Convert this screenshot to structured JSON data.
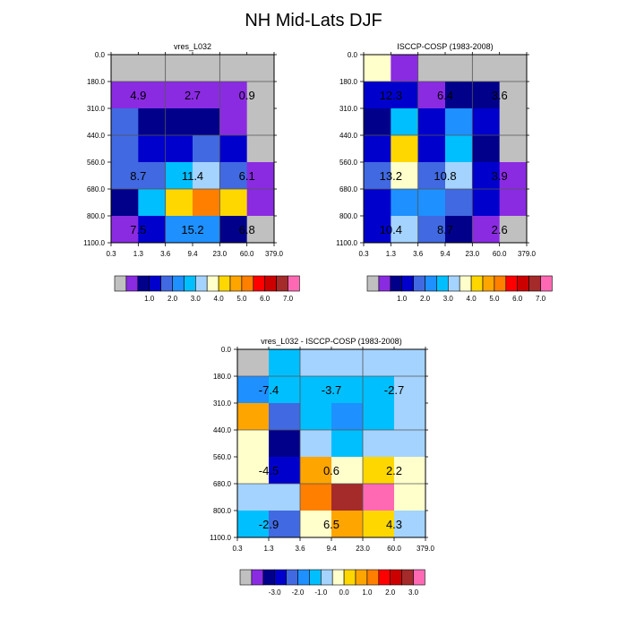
{
  "title": "NH Mid-Lats DJF",
  "colors": {
    "seq": [
      "#c0c0c0",
      "#8a2be2",
      "#00008b",
      "#0000cd",
      "#4169e1",
      "#1e90ff",
      "#00bfff",
      "#a4d3ff",
      "#ffffcc",
      "#ffd700",
      "#ffa500",
      "#ff7f00",
      "#ff0000",
      "#cd0000",
      "#a52a2a",
      "#ff69b4"
    ],
    "diff": [
      "#c0c0c0",
      "#8a2be2",
      "#00008b",
      "#0000cd",
      "#4169e1",
      "#1e90ff",
      "#00bfff",
      "#a4d3ff",
      "#ffffcc",
      "#ffd700",
      "#ffa500",
      "#ff7f00",
      "#ff0000",
      "#cd0000",
      "#a52a2a",
      "#ff69b4"
    ]
  },
  "chart_data": [
    {
      "type": "heatmap",
      "title": "vres_L032",
      "xticks": [
        "0.3",
        "1.3",
        "3.6",
        "9.4",
        "23.0",
        "60.0",
        "379.0"
      ],
      "yticks": [
        "0.0",
        "180.0",
        "310.0",
        "440.0",
        "560.0",
        "680.0",
        "800.0",
        "1100.0"
      ],
      "cells": [
        [
          0,
          0,
          0,
          0,
          0,
          0
        ],
        [
          1,
          1,
          1,
          1,
          1,
          0
        ],
        [
          4,
          2,
          2,
          2,
          1,
          0
        ],
        [
          4,
          3,
          3,
          4,
          3,
          0
        ],
        [
          4,
          4,
          6,
          7,
          4,
          1
        ],
        [
          2,
          6,
          9,
          11,
          9,
          1
        ],
        [
          1,
          3,
          5,
          5,
          2,
          0
        ]
      ],
      "labels": [
        {
          "text": "4.9",
          "row": 1,
          "col": 0.5
        },
        {
          "text": "2.7",
          "row": 1,
          "col": 2.5
        },
        {
          "text": "0.9",
          "row": 1,
          "col": 4.5
        },
        {
          "text": "8.7",
          "row": 4,
          "col": 0.5
        },
        {
          "text": "11.4",
          "row": 4,
          "col": 2.5
        },
        {
          "text": "6.1",
          "row": 4,
          "col": 4.5
        },
        {
          "text": "7.5",
          "row": 6,
          "col": 0.5
        },
        {
          "text": "15.2",
          "row": 6,
          "col": 2.5
        },
        {
          "text": "6.8",
          "row": 6,
          "col": 4.5
        }
      ],
      "colorbar": [
        "1.0",
        "2.0",
        "3.0",
        "4.0",
        "5.0",
        "6.0",
        "7.0"
      ]
    },
    {
      "type": "heatmap",
      "title": "ISCCP-COSP (1983-2008)",
      "xticks": [
        "0.3",
        "1.3",
        "3.6",
        "9.4",
        "23.0",
        "60.0",
        "379.0"
      ],
      "yticks": [
        "0.0",
        "180.0",
        "310.0",
        "440.0",
        "560.0",
        "680.0",
        "800.0",
        "1100.0"
      ],
      "cells": [
        [
          8,
          1,
          0,
          0,
          0,
          0
        ],
        [
          3,
          3,
          1,
          2,
          2,
          0
        ],
        [
          2,
          6,
          3,
          5,
          3,
          0
        ],
        [
          3,
          9,
          3,
          6,
          2,
          0
        ],
        [
          4,
          8,
          4,
          7,
          3,
          1
        ],
        [
          3,
          5,
          5,
          4,
          3,
          1
        ],
        [
          3,
          7,
          4,
          2,
          1,
          0
        ]
      ],
      "labels": [
        {
          "text": "12.3",
          "row": 1,
          "col": 0.5
        },
        {
          "text": "6.4",
          "row": 1,
          "col": 2.5
        },
        {
          "text": "3.6",
          "row": 1,
          "col": 4.5
        },
        {
          "text": "13.2",
          "row": 4,
          "col": 0.5
        },
        {
          "text": "10.8",
          "row": 4,
          "col": 2.5
        },
        {
          "text": "3.9",
          "row": 4,
          "col": 4.5
        },
        {
          "text": "10.4",
          "row": 6,
          "col": 0.5
        },
        {
          "text": "8.7",
          "row": 6,
          "col": 2.5
        },
        {
          "text": "2.6",
          "row": 6,
          "col": 4.5
        }
      ],
      "colorbar": [
        "1.0",
        "2.0",
        "3.0",
        "4.0",
        "5.0",
        "6.0",
        "7.0"
      ]
    },
    {
      "type": "heatmap",
      "title": "vres_L032 - ISCCP-COSP (1983-2008)",
      "xticks": [
        "0.3",
        "1.3",
        "3.6",
        "9.4",
        "23.0",
        "60.0",
        "379.0"
      ],
      "yticks": [
        "0.0",
        "180.0",
        "310.0",
        "440.0",
        "560.0",
        "680.0",
        "800.0",
        "1100.0"
      ],
      "cells": [
        [
          0,
          6,
          7,
          7,
          7,
          7
        ],
        [
          5,
          6,
          6,
          6,
          6,
          7
        ],
        [
          10,
          4,
          6,
          5,
          6,
          7
        ],
        [
          8,
          2,
          7,
          6,
          7,
          7
        ],
        [
          8,
          3,
          10,
          8,
          9,
          8
        ],
        [
          7,
          7,
          11,
          14,
          15,
          8
        ],
        [
          6,
          4,
          8,
          10,
          9,
          7
        ]
      ],
      "labels": [
        {
          "text": "-7.4",
          "row": 1,
          "col": 0.5
        },
        {
          "text": "-3.7",
          "row": 1,
          "col": 2.5
        },
        {
          "text": "-2.7",
          "row": 1,
          "col": 4.5
        },
        {
          "text": "-4.5",
          "row": 4,
          "col": 0.5
        },
        {
          "text": "0.6",
          "row": 4,
          "col": 2.5
        },
        {
          "text": "2.2",
          "row": 4,
          "col": 4.5
        },
        {
          "text": "-2.9",
          "row": 6,
          "col": 0.5
        },
        {
          "text": "6.5",
          "row": 6,
          "col": 2.5
        },
        {
          "text": "4.3",
          "row": 6,
          "col": 4.5
        }
      ],
      "colorbar": [
        "-3.0",
        "-2.0",
        "-1.0",
        "0.0",
        "1.0",
        "2.0",
        "3.0"
      ]
    }
  ]
}
